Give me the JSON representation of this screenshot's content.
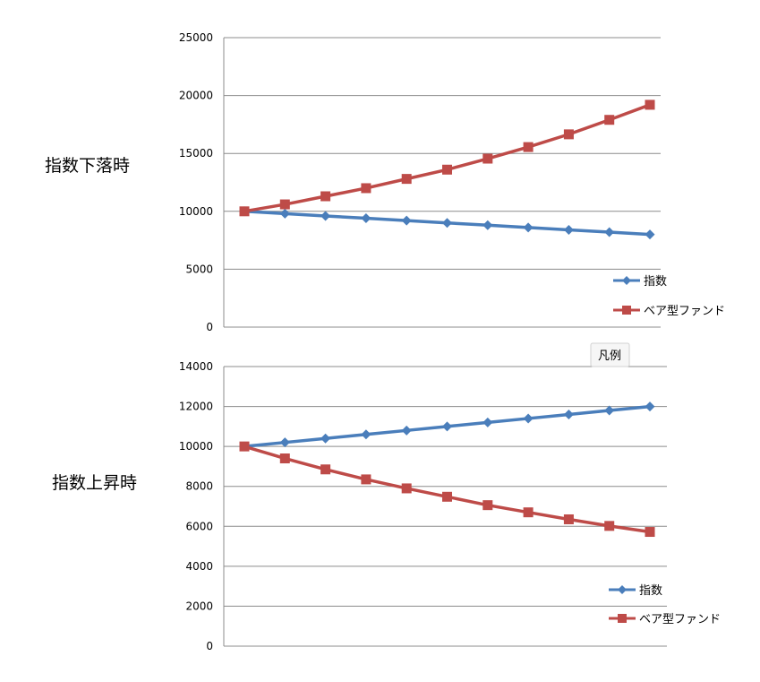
{
  "tooltip": {
    "text": "凡例"
  },
  "colors": {
    "index": "#4a7ebb",
    "bear": "#be4b48",
    "grid": "#8c8c8c"
  },
  "chart_data": [
    {
      "type": "line",
      "title": "指数下落時",
      "xlabel": "",
      "ylabel": "",
      "ylim": [
        0,
        25000
      ],
      "yticks": [
        0,
        5000,
        10000,
        15000,
        20000,
        25000
      ],
      "ytick_labels": [
        "0",
        "5000",
        "10000",
        "15000",
        "20000",
        "25000"
      ],
      "grid": true,
      "legend_position": "right",
      "x": [
        1,
        2,
        3,
        4,
        5,
        6,
        7,
        8,
        9,
        10,
        11
      ],
      "series": [
        {
          "name": "指数",
          "color": "#4a7ebb",
          "marker": "diamond",
          "values": [
            10000,
            9800,
            9600,
            9400,
            9200,
            9000,
            8800,
            8600,
            8400,
            8200,
            8000
          ]
        },
        {
          "name": "ベア型ファンド",
          "color": "#be4b48",
          "marker": "square",
          "values": [
            10000,
            10600,
            11300,
            12000,
            12800,
            13600,
            14550,
            15550,
            16650,
            17900,
            19200
          ]
        }
      ]
    },
    {
      "type": "line",
      "title": "指数上昇時",
      "xlabel": "",
      "ylabel": "",
      "ylim": [
        0,
        14000
      ],
      "yticks": [
        0,
        2000,
        4000,
        6000,
        8000,
        10000,
        12000,
        14000
      ],
      "ytick_labels": [
        "0",
        "2000",
        "4000",
        "6000",
        "8000",
        "10000",
        "12000",
        "14000"
      ],
      "grid": true,
      "legend_position": "right",
      "x": [
        1,
        2,
        3,
        4,
        5,
        6,
        7,
        8,
        9,
        10,
        11
      ],
      "series": [
        {
          "name": "指数",
          "color": "#4a7ebb",
          "marker": "diamond",
          "values": [
            10000,
            10200,
            10400,
            10600,
            10800,
            11000,
            11200,
            11400,
            11600,
            11800,
            12000
          ]
        },
        {
          "name": "ベア型ファンド",
          "color": "#be4b48",
          "marker": "square",
          "values": [
            10000,
            9400,
            8850,
            8350,
            7900,
            7480,
            7060,
            6700,
            6350,
            6020,
            5720
          ]
        }
      ]
    }
  ]
}
